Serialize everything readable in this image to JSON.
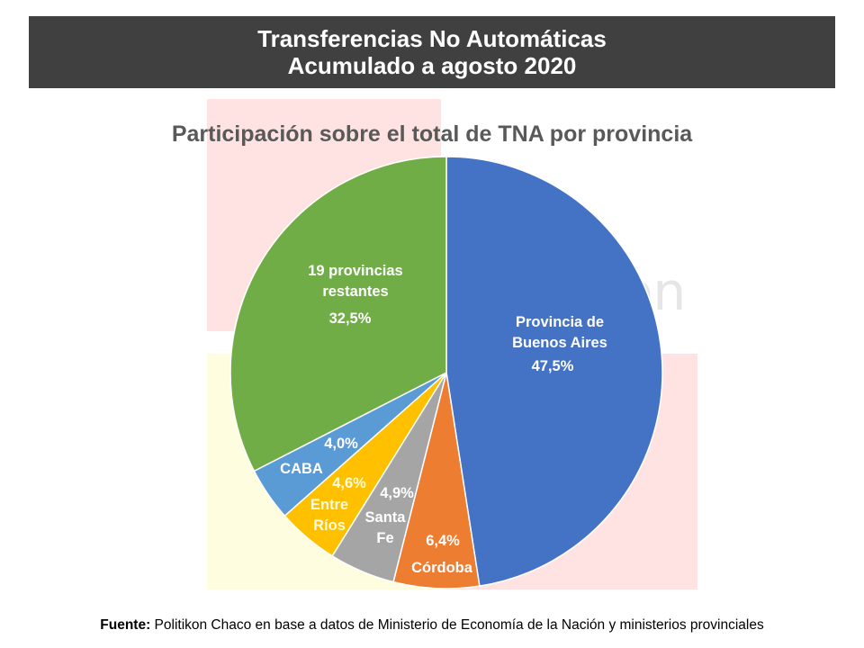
{
  "header": {
    "line1": "Transferencias No Automáticas",
    "line2": "Acumulado a agosto 2020"
  },
  "watermark": {
    "text": "on"
  },
  "chart_data": {
    "type": "pie",
    "title": "Participación sobre el total de TNA por provincia",
    "slices": [
      {
        "label_lines": [
          "Provincia de",
          "Buenos Aires"
        ],
        "value_label": "47,5%",
        "value": 47.5,
        "color": "#4472c4",
        "label_color": "#ffffff"
      },
      {
        "label_lines": [
          "Córdoba"
        ],
        "value_label": "6,4%",
        "value": 6.4,
        "color": "#ed7d31",
        "label_color": "#ffffff"
      },
      {
        "label_lines": [
          "Santa",
          "Fe"
        ],
        "value_label": "4,9%",
        "value": 4.9,
        "color": "#a5a5a5",
        "label_color": "#ffffff"
      },
      {
        "label_lines": [
          "Entre",
          "Ríos"
        ],
        "value_label": "4,6%",
        "value": 4.6,
        "color": "#ffc000",
        "label_color": "#fffbe0"
      },
      {
        "label_lines": [
          "CABA"
        ],
        "value_label": "4,0%",
        "value": 4.0,
        "color": "#5b9bd5",
        "label_color": "#ffffff"
      },
      {
        "label_lines": [
          "19 provincias",
          "restantes"
        ],
        "value_label": "32,5%",
        "value": 32.5,
        "color": "#70ad47",
        "label_color": "#ffffff"
      }
    ]
  },
  "footer": {
    "label": "Fuente:",
    "text": " Politikon Chaco en base a datos de Ministerio de Economía de la Nación y ministerios provinciales"
  }
}
